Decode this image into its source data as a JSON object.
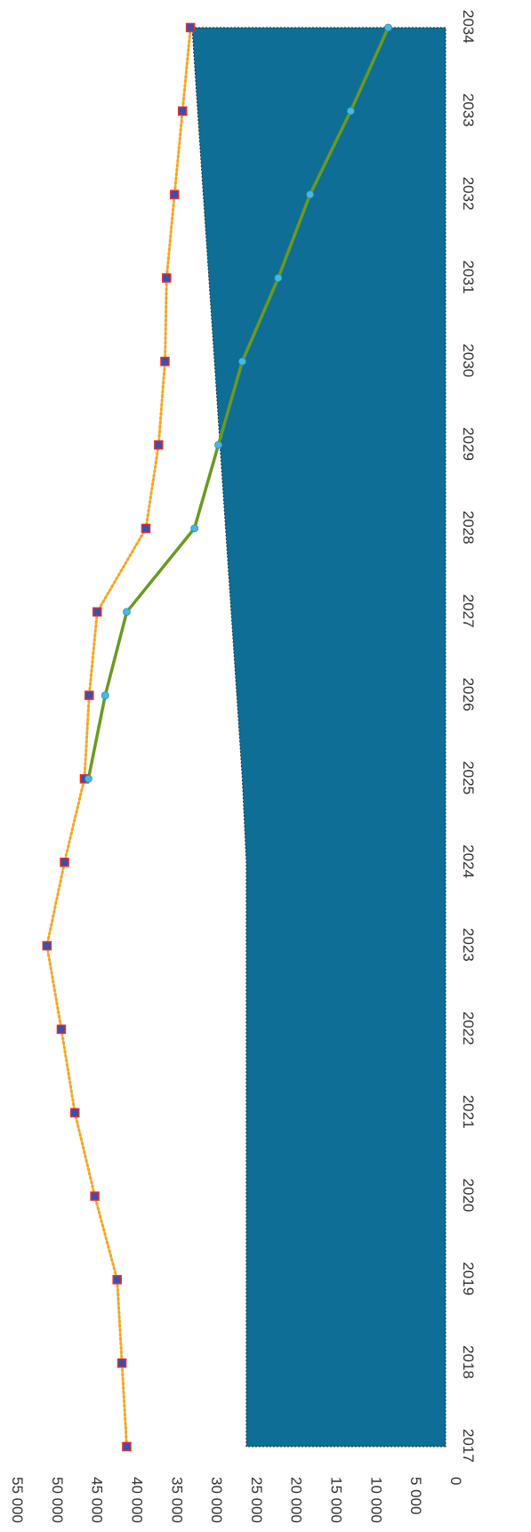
{
  "chart_data": {
    "type": "line",
    "orientation": "rotated-90-clockwise",
    "categories": [
      "2017",
      "2018",
      "2019",
      "2020",
      "2021",
      "2022",
      "2023",
      "2024",
      "2025",
      "2026",
      "2027",
      "2028",
      "2029",
      "2030",
      "2031",
      "2032",
      "2033",
      "2034"
    ],
    "ylim": [
      0,
      55000
    ],
    "y_ticks": [
      0,
      5000,
      10000,
      15000,
      20000,
      25000,
      30000,
      35000,
      40000,
      45000,
      50000,
      55000
    ],
    "y_tick_labels": [
      "0",
      "5 000",
      "10 000",
      "15 000",
      "20 000",
      "25 000",
      "30 000",
      "35 000",
      "40 000",
      "45 000",
      "50 000",
      "55 000"
    ],
    "grid": false,
    "series": [
      {
        "kind": "area",
        "color": "#0e6e96",
        "values": [
          25000,
          25000,
          25000,
          25000,
          25000,
          25000,
          25000,
          25000,
          25500,
          26200,
          26900,
          27600,
          28300,
          29000,
          29700,
          30400,
          31100,
          31800
        ]
      },
      {
        "kind": "line-dotted",
        "color": "#f5a623",
        "marker": "square",
        "marker_color": "#3a4fb0",
        "marker_edge": "#e0302a",
        "values": [
          40000,
          40600,
          41200,
          44000,
          46500,
          48200,
          50000,
          47800,
          45300,
          44700,
          43700,
          37600,
          36000,
          35200,
          35000,
          34000,
          33000,
          32000
        ]
      },
      {
        "kind": "line-solid",
        "color": "#6a9a1f",
        "marker": "circle",
        "marker_color": "#49b8e0",
        "values": [
          null,
          null,
          null,
          null,
          null,
          null,
          null,
          null,
          44800,
          42700,
          40000,
          31500,
          28500,
          25500,
          21000,
          17000,
          11900,
          7200
        ]
      }
    ]
  }
}
